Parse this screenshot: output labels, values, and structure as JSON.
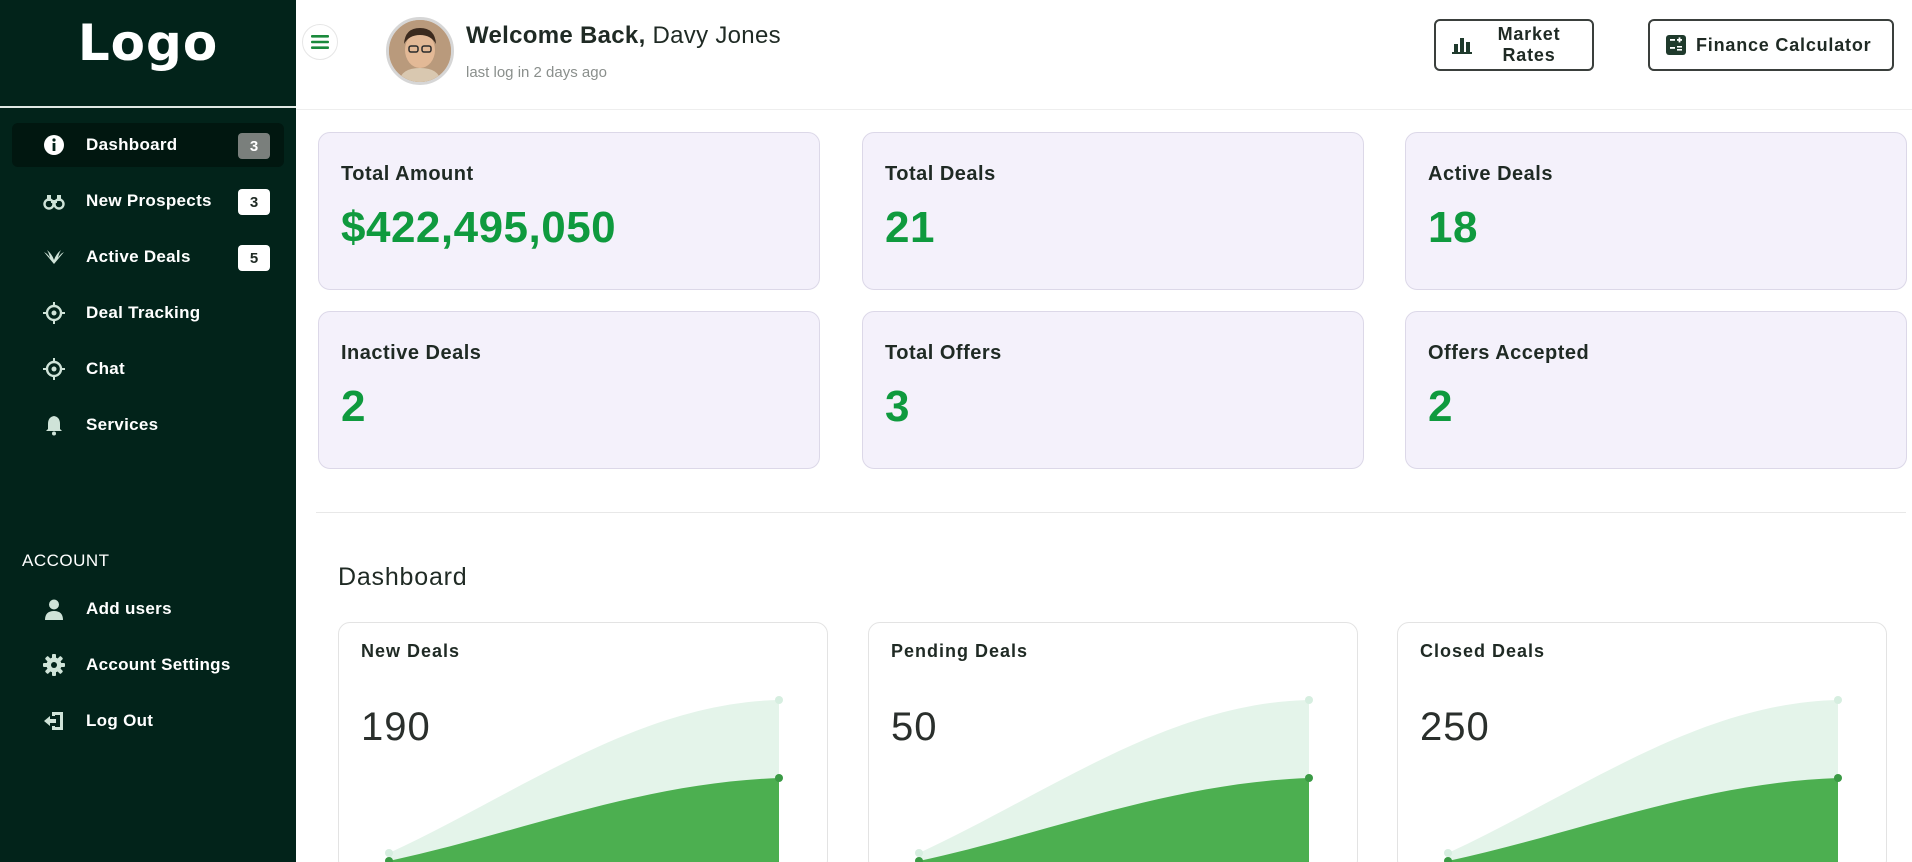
{
  "sidebar": {
    "logo": "Logo",
    "items": [
      {
        "label": "Dashboard",
        "badge": "3",
        "icon": "info-icon"
      },
      {
        "label": "New Prospects",
        "badge": "3",
        "icon": "binoculars-icon"
      },
      {
        "label": "Active Deals",
        "badge": "5",
        "icon": "wings-icon"
      },
      {
        "label": "Deal Tracking",
        "icon": "target-icon"
      },
      {
        "label": "Chat",
        "icon": "target-icon"
      },
      {
        "label": "Services",
        "icon": "bell-icon"
      }
    ],
    "account_title": "ACCOUNT",
    "account_items": [
      {
        "label": "Add users",
        "icon": "user-icon"
      },
      {
        "label": "Account Settings",
        "icon": "gear-icon"
      },
      {
        "label": "Log Out",
        "icon": "logout-icon"
      }
    ]
  },
  "header": {
    "welcome_prefix": "Welcome Back,",
    "user_name": "Davy Jones",
    "last_login": "last log in 2 days ago",
    "market_rates": "Market Rates",
    "finance_calculator": "Finance Calculator"
  },
  "stats": [
    {
      "title": "Total Amount",
      "value": "$422,495,050"
    },
    {
      "title": "Total Deals",
      "value": "21"
    },
    {
      "title": "Active Deals",
      "value": "18"
    },
    {
      "title": "Inactive Deals",
      "value": "2"
    },
    {
      "title": "Total Offers",
      "value": "3"
    },
    {
      "title": "Offers Accepted",
      "value": "2"
    }
  ],
  "dashboard": {
    "title": "Dashboard",
    "cards": [
      {
        "title": "New Deals",
        "value": "190"
      },
      {
        "title": "Pending Deals",
        "value": "50"
      },
      {
        "title": "Closed Deals",
        "value": "250"
      }
    ]
  },
  "colors": {
    "sidebar_bg": "#02231a",
    "accent_green": "#0f9a3e",
    "chart_green": "#4caf50",
    "chart_light": "#e4f4ea",
    "stat_card_bg": "#f4f1fb"
  }
}
